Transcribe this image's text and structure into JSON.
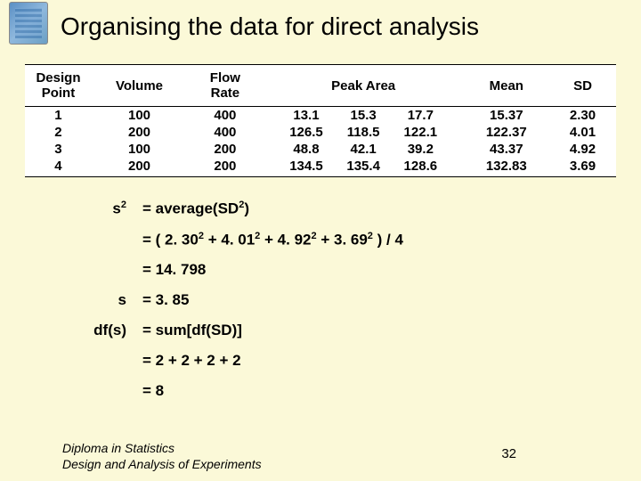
{
  "title": "Organising the data for direct analysis",
  "table": {
    "headers": {
      "design": "Design\nPoint",
      "volume": "Volume",
      "flow": "Flow\nRate",
      "peak": "Peak Area",
      "mean": "Mean",
      "sd": "SD"
    },
    "rows": [
      {
        "design": "1",
        "volume": "100",
        "flow": "400",
        "peak": [
          "13.1",
          "15.3",
          "17.7"
        ],
        "mean": "15.37",
        "sd": "2.30"
      },
      {
        "design": "2",
        "volume": "200",
        "flow": "400",
        "peak": [
          "126.5",
          "118.5",
          "122.1"
        ],
        "mean": "122.37",
        "sd": "4.01"
      },
      {
        "design": "3",
        "volume": "100",
        "flow": "200",
        "peak": [
          "48.8",
          "42.1",
          "39.2"
        ],
        "mean": "43.37",
        "sd": "4.92"
      },
      {
        "design": "4",
        "volume": "200",
        "flow": "200",
        "peak": [
          "134.5",
          "135.4",
          "128.6"
        ],
        "mean": "132.83",
        "sd": "3.69"
      }
    ]
  },
  "equations": [
    {
      "label_html": "s<sup>2</sup>",
      "value_html": "= average(SD<sup>2</sup>)"
    },
    {
      "label_html": "",
      "value_html": "= ( 2. 30<sup>2</sup> + 4. 01<sup>2</sup> + 4. 92<sup>2</sup> + 3. 69<sup>2</sup> ) / 4"
    },
    {
      "label_html": "",
      "value_html": "= 14. 798"
    },
    {
      "label_html": "s",
      "value_html": "=  3. 85"
    },
    {
      "label_html": "df(s)",
      "value_html": "= sum[df(SD)]"
    },
    {
      "label_html": "",
      "value_html": "= 2 + 2 + 2 + 2"
    },
    {
      "label_html": "",
      "value_html": "= 8"
    }
  ],
  "footer": {
    "line1": "Diploma in Statistics",
    "line2": "Design and Analysis of Experiments"
  },
  "page_number": "32",
  "colors": {
    "background": "#fbf9d8",
    "text": "#000000",
    "table_bg": "#ffffff"
  }
}
